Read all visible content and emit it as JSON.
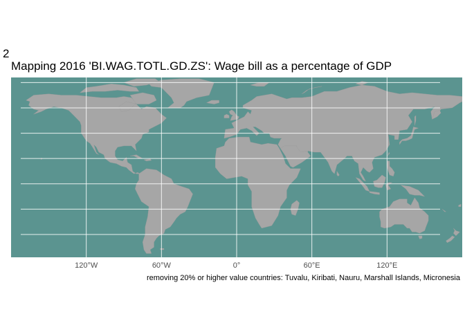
{
  "figure": {
    "tag": "2",
    "title": "Mapping 2016 'BI.WAG.TOTL.GD.ZS':  Wage bill as a percentage of GDP",
    "caption": "removing 20% or higher value countries:  Tuvalu, Kiribati, Nauru, Marshall Islands, Micronesia"
  },
  "map": {
    "projection": "equirectangular",
    "lon_range": [
      -180,
      180
    ],
    "lat_range": [
      -58,
      84
    ],
    "ocean_color": "#5b9490",
    "land_color": "#a6a6a6",
    "grid_color": "#ffffff",
    "x_ticks": [
      {
        "lon": -120,
        "label": "120°W"
      },
      {
        "lon": -60,
        "label": "60°W"
      },
      {
        "lon": 0,
        "label": "0°"
      },
      {
        "lon": 60,
        "label": "60°E"
      },
      {
        "lon": 120,
        "label": "120°E"
      }
    ],
    "lat_gridlines": [
      -40,
      -20,
      0,
      20,
      40,
      60,
      80
    ]
  }
}
